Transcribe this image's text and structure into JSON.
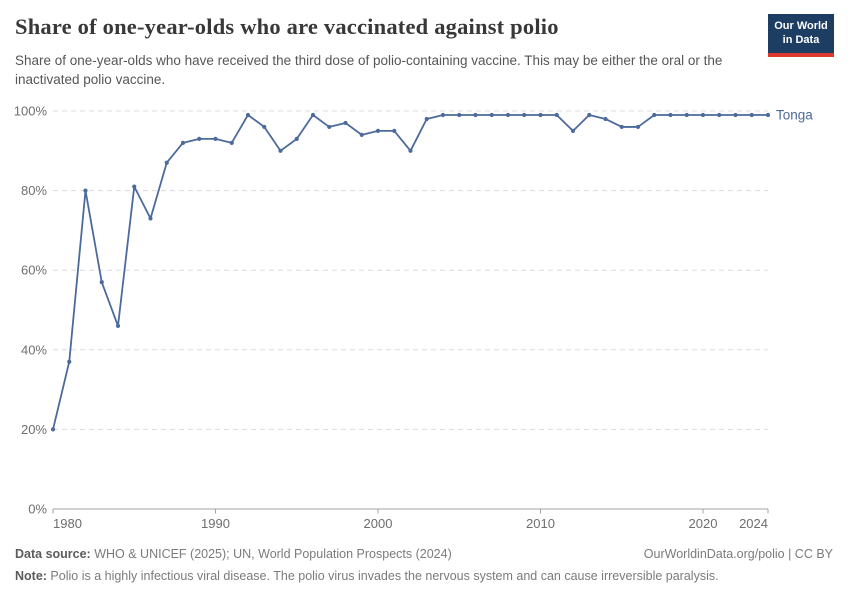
{
  "header": {
    "title": "Share of one-year-olds who are vaccinated against polio",
    "subtitle": "Share of one-year-olds who have received the third dose of polio-containing vaccine. This may be either the oral or the inactivated polio vaccine.",
    "logo": {
      "line1": "Our World",
      "line2": "in Data"
    },
    "logo_colors": {
      "background": "#1d3d63",
      "underline": "#dc382d",
      "text": "#ffffff"
    }
  },
  "chart_data": {
    "type": "line",
    "title": "Share of one-year-olds who are vaccinated against polio",
    "x": [
      1980,
      1981,
      1982,
      1983,
      1984,
      1985,
      1986,
      1987,
      1988,
      1989,
      1990,
      1991,
      1992,
      1993,
      1994,
      1995,
      1996,
      1997,
      1998,
      1999,
      2000,
      2001,
      2002,
      2003,
      2004,
      2005,
      2006,
      2007,
      2008,
      2009,
      2010,
      2011,
      2012,
      2013,
      2014,
      2015,
      2016,
      2017,
      2018,
      2019,
      2020,
      2021,
      2022,
      2023,
      2024
    ],
    "series": [
      {
        "name": "Tonga",
        "values": [
          20,
          37,
          80,
          57,
          46,
          81,
          73,
          87,
          92,
          93,
          93,
          92,
          99,
          96,
          90,
          93,
          99,
          96,
          97,
          94,
          95,
          95,
          90,
          98,
          99,
          99,
          99,
          99,
          99,
          99,
          99,
          99,
          95,
          99,
          98,
          96,
          96,
          99,
          99,
          99,
          99,
          99,
          99,
          99,
          99
        ]
      }
    ],
    "xlim": [
      1980,
      2024
    ],
    "ylim": [
      0,
      100
    ],
    "yticks": [
      0,
      20,
      40,
      60,
      80,
      100
    ],
    "ytick_suffix": "%",
    "xticks": [
      1980,
      1990,
      2000,
      2010,
      2020,
      2024
    ],
    "grid": true,
    "grid_style": "dashed",
    "legend_position": "end-of-line-label",
    "line_color": "#4C6A9C",
    "marker": "dot"
  },
  "footer": {
    "data_source_label": "Data source:",
    "data_source_text": " WHO & UNICEF (2025); UN, World Population Prospects (2024)",
    "note_label": "Note:",
    "note_text": " Polio is a highly infectious viral disease. The polio virus invades the nervous system and can cause irreversible paralysis.",
    "rights": "OurWorldinData.org/polio | CC BY"
  }
}
